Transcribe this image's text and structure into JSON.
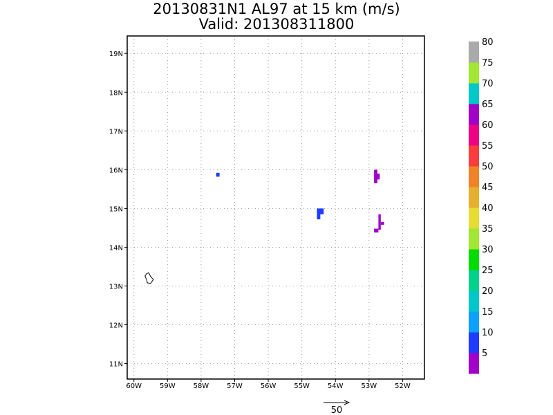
{
  "title": {
    "line1": "20130831N1 AL97 at 15 km (m/s)",
    "line2": "Valid: 201308311800"
  },
  "map": {
    "lon_range": [
      -60.2,
      -51.35
    ],
    "lat_range": [
      10.6,
      19.45
    ],
    "lon_ticks": [
      {
        "v": -60,
        "label": "60W"
      },
      {
        "v": -59,
        "label": "59W"
      },
      {
        "v": -58,
        "label": "58W"
      },
      {
        "v": -57,
        "label": "57W"
      },
      {
        "v": -56,
        "label": "56W"
      },
      {
        "v": -55,
        "label": "55W"
      },
      {
        "v": -54,
        "label": "54W"
      },
      {
        "v": -53,
        "label": "53W"
      },
      {
        "v": -52,
        "label": "52W"
      }
    ],
    "lat_ticks": [
      {
        "v": 11,
        "label": "11N"
      },
      {
        "v": 12,
        "label": "12N"
      },
      {
        "v": 13,
        "label": "13N"
      },
      {
        "v": 14,
        "label": "14N"
      },
      {
        "v": 15,
        "label": "15N"
      },
      {
        "v": 16,
        "label": "16N"
      },
      {
        "v": 17,
        "label": "17N"
      },
      {
        "v": 18,
        "label": "18N"
      },
      {
        "v": 19,
        "label": "19N"
      }
    ],
    "grid": "dotted",
    "wind_patches": [
      {
        "lon": [
          -57.55,
          -57.45
        ],
        "lat": [
          15.82,
          15.92
        ],
        "color": "#1e3cff"
      },
      {
        "lon": [
          -54.55,
          -54.35
        ],
        "lat": [
          14.85,
          15.0
        ],
        "color": "#1e3cff"
      },
      {
        "lon": [
          -54.55,
          -54.45
        ],
        "lat": [
          14.72,
          14.86
        ],
        "color": "#1e3cff"
      },
      {
        "lon": [
          -52.85,
          -52.75
        ],
        "lat": [
          15.65,
          16.0
        ],
        "color": "#a000c8"
      },
      {
        "lon": [
          -52.75,
          -52.68
        ],
        "lat": [
          15.75,
          15.9
        ],
        "color": "#a000c8"
      },
      {
        "lon": [
          -52.72,
          -52.65
        ],
        "lat": [
          14.45,
          14.85
        ],
        "color": "#a000c8"
      },
      {
        "lon": [
          -52.85,
          -52.72
        ],
        "lat": [
          14.38,
          14.48
        ],
        "color": "#a000c8"
      },
      {
        "lon": [
          -52.65,
          -52.55
        ],
        "lat": [
          14.58,
          14.65
        ],
        "color": "#a000c8"
      }
    ],
    "island_outline": [
      [
        -59.62,
        13.32
      ],
      [
        -59.56,
        13.34
      ],
      [
        -59.5,
        13.24
      ],
      [
        -59.42,
        13.17
      ],
      [
        -59.5,
        13.07
      ],
      [
        -59.6,
        13.08
      ],
      [
        -59.62,
        13.15
      ],
      [
        -59.67,
        13.26
      ]
    ]
  },
  "colorbar": {
    "colors": [
      "#a000c8",
      "#1e3cff",
      "#0ea0ff",
      "#00c8c8",
      "#00d28c",
      "#00dc00",
      "#a0e632",
      "#e6dc32",
      "#e6af2d",
      "#f08228",
      "#fa3c3c",
      "#f00082",
      "#a000c8",
      "#00c8c8",
      "#a0e632",
      "#aaaaaa"
    ],
    "labels": [
      "5",
      "10",
      "15",
      "20",
      "25",
      "30",
      "35",
      "40",
      "45",
      "50",
      "55",
      "60",
      "65",
      "70",
      "75",
      "80"
    ]
  },
  "reference_vector": {
    "label": "50"
  }
}
